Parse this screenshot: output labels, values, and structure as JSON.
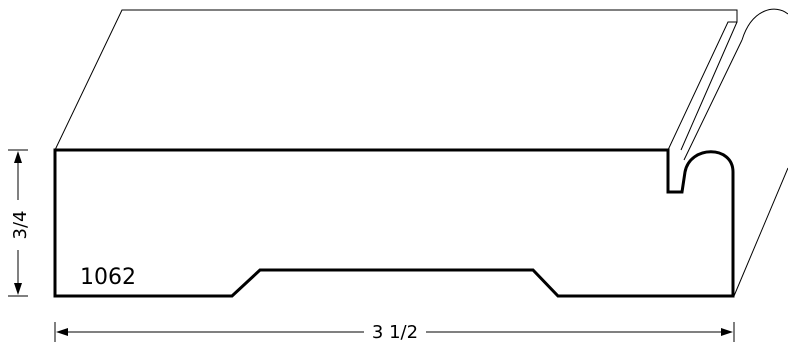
{
  "profile": {
    "part_number": "1062"
  },
  "dimensions": {
    "width_label": "3 1/2",
    "thickness_label": "3/4"
  },
  "colors": {
    "line": "#000000",
    "background": "#ffffff"
  }
}
